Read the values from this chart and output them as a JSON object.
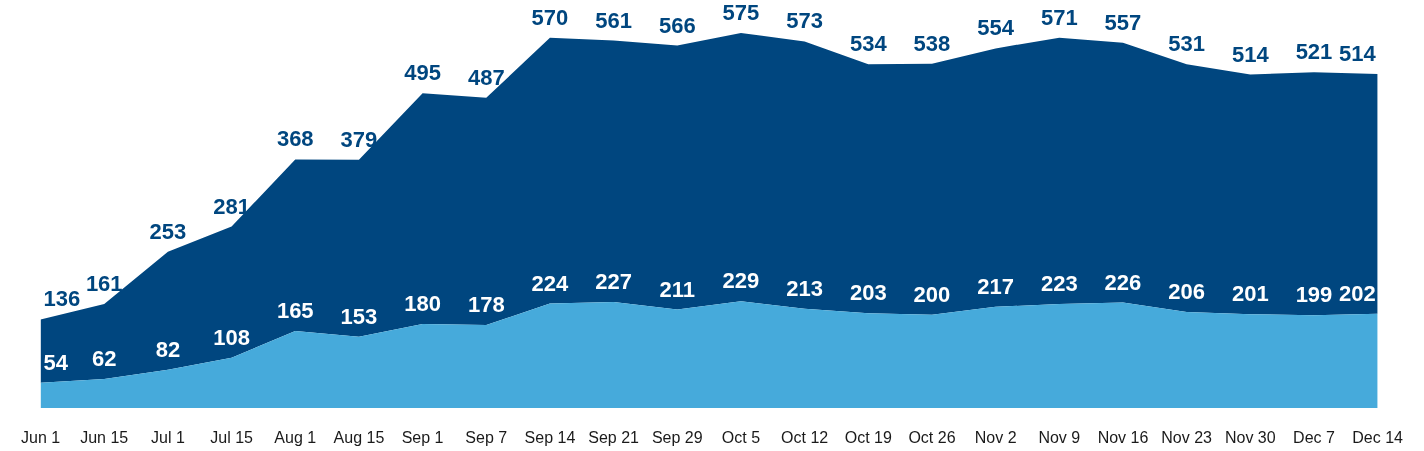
{
  "chart_data": {
    "type": "area",
    "stacked": true,
    "data_labels": true,
    "tick_labels": "x",
    "categories": [
      "Jun 1",
      "Jun 15",
      "Jul 1",
      "Jul 15",
      "Aug 1",
      "Aug 15",
      "Sep 1",
      "Sep 7",
      "Sep 14",
      "Sep 21",
      "Sep 29",
      "Oct 5",
      "Oct 12",
      "Oct 19",
      "Oct 26",
      "Nov 2",
      "Nov 9",
      "Nov 16",
      "Nov 23",
      "Nov 30",
      "Dec 7",
      "Dec 14"
    ],
    "series": [
      {
        "color": "#46aadb",
        "values": [
          54,
          62,
          82,
          108,
          165,
          153,
          180,
          178,
          224,
          227,
          211,
          229,
          213,
          203,
          200,
          217,
          223,
          226,
          206,
          201,
          199,
          202
        ]
      },
      {
        "color": "#00467f",
        "values": [
          136,
          161,
          253,
          281,
          368,
          379,
          495,
          487,
          570,
          561,
          566,
          575,
          573,
          534,
          538,
          554,
          571,
          557,
          531,
          514,
          521,
          514
        ]
      }
    ]
  }
}
